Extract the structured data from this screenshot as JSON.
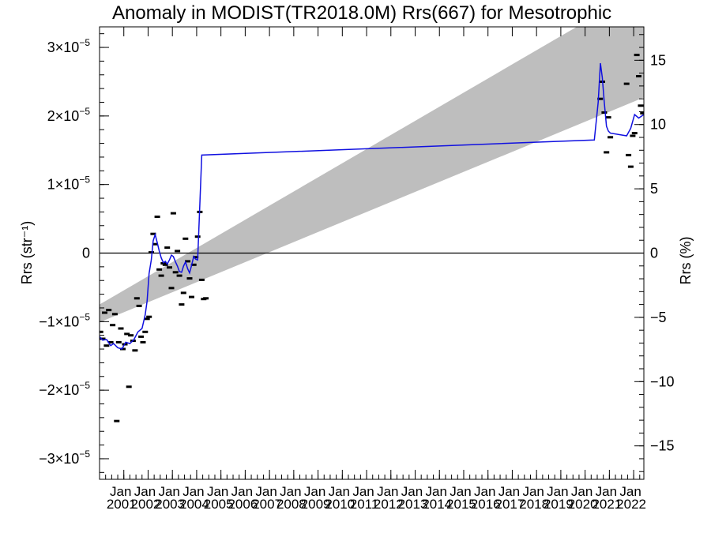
{
  "chart_data": {
    "type": "line",
    "title": "Anomaly in MODIST(TR2018.0M) Rrs(667) for Mesotrophic",
    "ylabel": "Rrs (str⁻¹)",
    "ylabel_right": "Rrs (%)",
    "xlabel": "",
    "ylim": [
      -3.3e-05,
      3.3e-05
    ],
    "ylim_right": [
      -17.6,
      17.6
    ],
    "xlim": [
      2000.0,
      2022.42
    ],
    "grid": false,
    "y_ticks": [
      {
        "value": -3e-05,
        "mantissa": "−3",
        "exp": "−5"
      },
      {
        "value": -2e-05,
        "mantissa": "−2",
        "exp": "−5"
      },
      {
        "value": -1e-05,
        "mantissa": "−1",
        "exp": "−5"
      },
      {
        "value": 0,
        "mantissa": "0",
        "exp": ""
      },
      {
        "value": 1e-05,
        "mantissa": "1",
        "exp": "−5"
      },
      {
        "value": 2e-05,
        "mantissa": "2",
        "exp": "−5"
      },
      {
        "value": 3e-05,
        "mantissa": "3",
        "exp": "−5"
      }
    ],
    "y_tick_times": "×10",
    "y_right_ticks": [
      {
        "value": -15,
        "label": "−15"
      },
      {
        "value": -10,
        "label": "−10"
      },
      {
        "value": -5,
        "label": "−5"
      },
      {
        "value": 0,
        "label": "0"
      },
      {
        "value": 5,
        "label": "5"
      },
      {
        "value": 10,
        "label": "10"
      },
      {
        "value": 15,
        "label": "15"
      }
    ],
    "x_ticks": [
      {
        "value": 2001.0,
        "month": "Jan",
        "year": "2001"
      },
      {
        "value": 2002.0,
        "month": "Jan",
        "year": "2002"
      },
      {
        "value": 2003.0,
        "month": "Jan",
        "year": "2003"
      },
      {
        "value": 2004.0,
        "month": "Jan",
        "year": "2004"
      },
      {
        "value": 2005.0,
        "month": "Jan",
        "year": "2005"
      },
      {
        "value": 2006.0,
        "month": "Jan",
        "year": "2006"
      },
      {
        "value": 2007.0,
        "month": "Jan",
        "year": "2007"
      },
      {
        "value": 2008.0,
        "month": "Jan",
        "year": "2008"
      },
      {
        "value": 2009.0,
        "month": "Jan",
        "year": "2009"
      },
      {
        "value": 2010.0,
        "month": "Jan",
        "year": "2010"
      },
      {
        "value": 2011.0,
        "month": "Jan",
        "year": "2011"
      },
      {
        "value": 2012.0,
        "month": "Jan",
        "year": "2012"
      },
      {
        "value": 2013.0,
        "month": "Jan",
        "year": "2013"
      },
      {
        "value": 2014.0,
        "month": "Jan",
        "year": "2014"
      },
      {
        "value": 2015.0,
        "month": "Jan",
        "year": "2015"
      },
      {
        "value": 2016.0,
        "month": "Jan",
        "year": "2016"
      },
      {
        "value": 2017.0,
        "month": "Jan",
        "year": "2017"
      },
      {
        "value": 2018.0,
        "month": "Jan",
        "year": "2018"
      },
      {
        "value": 2019.0,
        "month": "Jan",
        "year": "2019"
      },
      {
        "value": 2020.0,
        "month": "Jan",
        "year": "2020"
      },
      {
        "value": 2021.0,
        "month": "Jan",
        "year": "2021"
      },
      {
        "value": 2022.0,
        "month": "Jan",
        "year": "2022"
      }
    ],
    "zero_line": 0,
    "trend_band": {
      "color": "#bebebe",
      "lower": [
        [
          2000.0,
          -1.01e-05
        ],
        [
          2022.42,
          2.27e-05
        ]
      ],
      "upper": [
        [
          2000.0,
          -7.5e-06
        ],
        [
          2022.42,
          3.87e-05
        ]
      ]
    },
    "series": [
      {
        "kind": "points",
        "color": "#000000",
        "points": [
          [
            2000.04,
            -1.15e-05
          ],
          [
            2000.13,
            -1.25e-05
          ],
          [
            2000.21,
            -8.7e-06
          ],
          [
            2000.29,
            -1.35e-05
          ],
          [
            2000.38,
            -8.3e-06
          ],
          [
            2000.46,
            -1.3e-05
          ],
          [
            2000.54,
            -1.05e-05
          ],
          [
            2000.63,
            -8.9e-06
          ],
          [
            2000.71,
            -2.45e-05
          ],
          [
            2000.79,
            -1.3e-05
          ],
          [
            2000.88,
            -1.1e-05
          ],
          [
            2000.96,
            -1.4e-05
          ],
          [
            2001.04,
            -1.33e-05
          ],
          [
            2001.13,
            -1.18e-05
          ],
          [
            2001.21,
            -1.95e-05
          ],
          [
            2001.29,
            -1.2e-05
          ],
          [
            2001.38,
            -1.28e-05
          ],
          [
            2001.46,
            -1.42e-05
          ],
          [
            2001.54,
            -6.6e-06
          ],
          [
            2001.63,
            -7.7e-06
          ],
          [
            2001.71,
            -1.22e-05
          ],
          [
            2001.79,
            -1.3e-05
          ],
          [
            2001.88,
            -1.15e-05
          ],
          [
            2001.96,
            -9.6e-06
          ],
          [
            2002.04,
            -9.3e-06
          ],
          [
            2002.13,
            1e-07
          ],
          [
            2002.21,
            2.8e-06
          ],
          [
            2002.29,
            1.3e-06
          ],
          [
            2002.38,
            5.3e-06
          ],
          [
            2002.46,
            -2.4e-06
          ],
          [
            2002.54,
            -3.3e-06
          ],
          [
            2002.63,
            -1.5e-06
          ],
          [
            2002.71,
            -1.7e-06
          ],
          [
            2002.79,
            8e-07
          ],
          [
            2002.88,
            -2.1e-06
          ],
          [
            2002.96,
            -5.1e-06
          ],
          [
            2003.04,
            5.8e-06
          ],
          [
            2003.13,
            -2.8e-06
          ],
          [
            2003.21,
            3e-07
          ],
          [
            2003.29,
            -3.3e-06
          ],
          [
            2003.38,
            -7.5e-06
          ],
          [
            2003.46,
            -5.8e-06
          ],
          [
            2003.54,
            2.1e-06
          ],
          [
            2003.63,
            -1.2e-06
          ],
          [
            2003.71,
            -3.7e-06
          ],
          [
            2003.79,
            -6.4e-06
          ],
          [
            2003.88,
            -1.7e-06
          ],
          [
            2003.96,
            -6e-07
          ],
          [
            2004.04,
            2.4e-06
          ],
          [
            2004.13,
            6e-06
          ],
          [
            2004.21,
            -3.9e-06
          ],
          [
            2004.29,
            -6.7e-06
          ],
          [
            2004.38,
            -6.6e-06
          ],
          [
            2020.62,
            2.25e-05
          ],
          [
            2020.71,
            2.5e-05
          ],
          [
            2020.79,
            2.05e-05
          ],
          [
            2020.88,
            1.47e-05
          ],
          [
            2020.96,
            1.98e-05
          ],
          [
            2021.04,
            1.69e-05
          ],
          [
            2021.71,
            2.47e-05
          ],
          [
            2021.79,
            1.43e-05
          ],
          [
            2021.88,
            1.26e-05
          ],
          [
            2021.96,
            1.71e-05
          ],
          [
            2022.04,
            1.75e-05
          ],
          [
            2022.13,
            2.89e-05
          ],
          [
            2022.21,
            2.58e-05
          ],
          [
            2022.29,
            2.15e-05
          ],
          [
            2022.38,
            2.04e-05
          ]
        ]
      },
      {
        "kind": "line",
        "color": "#1010e0",
        "points": [
          [
            2000.0,
            -1.22e-05
          ],
          [
            2000.13,
            -1.27e-05
          ],
          [
            2000.29,
            -1.26e-05
          ],
          [
            2000.46,
            -1.35e-05
          ],
          [
            2000.58,
            -1.32e-05
          ],
          [
            2000.75,
            -1.38e-05
          ],
          [
            2000.92,
            -1.4e-05
          ],
          [
            2001.08,
            -1.3e-05
          ],
          [
            2001.25,
            -1.32e-05
          ],
          [
            2001.42,
            -1.26e-05
          ],
          [
            2001.58,
            -1.15e-05
          ],
          [
            2001.75,
            -1.1e-05
          ],
          [
            2001.88,
            -9e-06
          ],
          [
            2001.96,
            -7e-06
          ],
          [
            2002.04,
            -3e-06
          ],
          [
            2002.13,
            -1e-06
          ],
          [
            2002.21,
            1.8e-06
          ],
          [
            2002.29,
            2.7e-06
          ],
          [
            2002.38,
            1.5e-06
          ],
          [
            2002.46,
            3e-07
          ],
          [
            2002.54,
            -7e-07
          ],
          [
            2002.63,
            -1.4e-06
          ],
          [
            2002.71,
            -1.2e-06
          ],
          [
            2002.79,
            -1.6e-06
          ],
          [
            2002.88,
            -1e-06
          ],
          [
            2002.96,
            -3e-07
          ],
          [
            2003.04,
            -5e-07
          ],
          [
            2003.13,
            -1.3e-06
          ],
          [
            2003.21,
            -1.9e-06
          ],
          [
            2003.29,
            -2.7e-06
          ],
          [
            2003.38,
            -2.8e-06
          ],
          [
            2003.46,
            -1.9e-06
          ],
          [
            2003.54,
            -1.3e-06
          ],
          [
            2003.63,
            -2.3e-06
          ],
          [
            2003.71,
            -2.9e-06
          ],
          [
            2003.79,
            -1.8e-06
          ],
          [
            2003.88,
            -5e-07
          ],
          [
            2003.96,
            -9e-07
          ],
          [
            2004.04,
            -1e-06
          ],
          [
            2004.21,
            1.43e-05
          ],
          [
            2020.38,
            1.65e-05
          ],
          [
            2020.54,
            2.2e-05
          ],
          [
            2020.63,
            2.77e-05
          ],
          [
            2020.71,
            2.56e-05
          ],
          [
            2020.79,
            2.2e-05
          ],
          [
            2020.88,
            1.85e-05
          ],
          [
            2020.96,
            1.78e-05
          ],
          [
            2021.04,
            1.75e-05
          ],
          [
            2021.71,
            1.71e-05
          ],
          [
            2021.88,
            1.82e-05
          ],
          [
            2022.04,
            2.02e-05
          ],
          [
            2022.21,
            1.97e-05
          ],
          [
            2022.42,
            2.02e-05
          ]
        ]
      }
    ]
  }
}
